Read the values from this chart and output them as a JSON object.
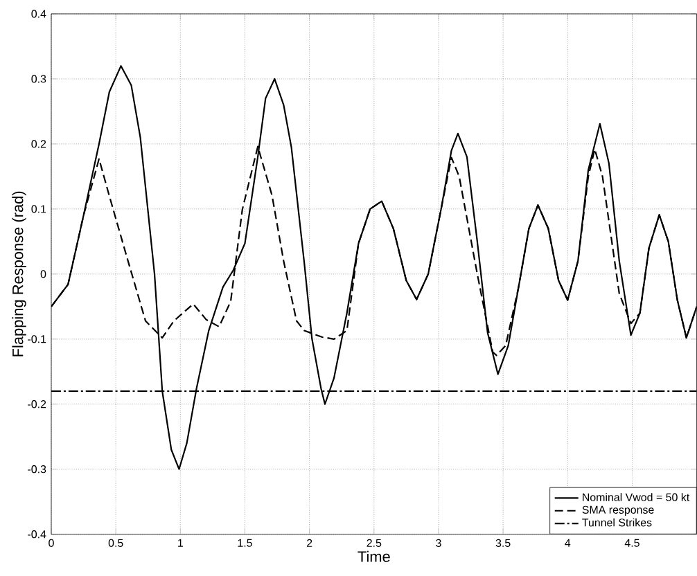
{
  "chart_data": {
    "type": "line",
    "xlabel": "Time",
    "ylabel": "Flapping Response (rad)",
    "xlim": [
      0,
      5
    ],
    "ylim": [
      -0.4,
      0.4
    ],
    "xticks": [
      0,
      0.5,
      1,
      1.5,
      2,
      2.5,
      3,
      3.5,
      4,
      4.5
    ],
    "yticks": [
      -0.4,
      -0.3,
      -0.2,
      -0.1,
      0,
      0.1,
      0.2,
      0.3,
      0.4
    ],
    "grid": true,
    "legend": "bottom right",
    "marker": "none",
    "series": [
      {
        "name": "Nominal Vwod = 50 kt",
        "color": "#000000",
        "line_style": "solid",
        "x": [
          0,
          0.13,
          0.25,
          0.37,
          0.45,
          0.54,
          0.62,
          0.69,
          0.8,
          0.86,
          0.93,
          0.99,
          1.05,
          1.125,
          1.22,
          1.33,
          1.41,
          1.5,
          1.6,
          1.66,
          1.73,
          1.8,
          1.86,
          1.96,
          2.02,
          2.09,
          2.12,
          2.19,
          2.29,
          2.38,
          2.47,
          2.56,
          2.65,
          2.75,
          2.83,
          2.92,
          3.02,
          3.1,
          3.15,
          3.22,
          3.3,
          3.38,
          3.46,
          3.54,
          3.62,
          3.7,
          3.77,
          3.85,
          3.93,
          4.0,
          4.08,
          4.16,
          4.25,
          4.32,
          4.4,
          4.49,
          4.56,
          4.63,
          4.71,
          4.78,
          4.85,
          4.92,
          5.0
        ],
        "values": [
          -0.05,
          -0.016,
          0.09,
          0.2,
          0.28,
          0.32,
          0.29,
          0.21,
          0,
          -0.18,
          -0.27,
          -0.3,
          -0.26,
          -0.176,
          -0.087,
          -0.02,
          0.006,
          0.047,
          0.18,
          0.27,
          0.3,
          0.26,
          0.195,
          0.017,
          -0.1,
          -0.176,
          -0.2,
          -0.16,
          -0.06,
          0.047,
          0.1,
          0.112,
          0.07,
          -0.01,
          -0.039,
          0.0,
          0.1,
          0.19,
          0.216,
          0.18,
          0.05,
          -0.09,
          -0.154,
          -0.11,
          -0.02,
          0.07,
          0.106,
          0.07,
          -0.01,
          -0.04,
          0.02,
          0.16,
          0.231,
          0.17,
          0.02,
          -0.094,
          -0.06,
          0.04,
          0.091,
          0.05,
          -0.04,
          -0.098,
          -0.05
        ]
      },
      {
        "name": "SMA response",
        "color": "#000000",
        "line_style": "dashed",
        "x": [
          0,
          0.13,
          0.25,
          0.37,
          0.45,
          0.58,
          0.73,
          0.86,
          0.95,
          1.1,
          1.2,
          1.3,
          1.39,
          1.48,
          1.6,
          1.71,
          1.8,
          1.9,
          1.96,
          2.1,
          2.19,
          2.29,
          2.38,
          2.47,
          2.56,
          2.65,
          2.75,
          2.83,
          2.92,
          3.02,
          3.1,
          3.16,
          3.3,
          3.42,
          3.45,
          3.52,
          3.62,
          3.7,
          3.77,
          3.85,
          3.93,
          4.0,
          4.08,
          4.16,
          4.21,
          4.27,
          4.4,
          4.49,
          4.56,
          4.63,
          4.71,
          4.78,
          4.85,
          4.92,
          5.0
        ],
        "values": [
          -0.05,
          -0.016,
          0.09,
          0.177,
          0.12,
          0.03,
          -0.072,
          -0.098,
          -0.072,
          -0.046,
          -0.07,
          -0.081,
          -0.042,
          0.099,
          0.196,
          0.121,
          0.02,
          -0.072,
          -0.087,
          -0.097,
          -0.1,
          -0.087,
          0.047,
          0.1,
          0.112,
          0.07,
          -0.01,
          -0.039,
          0.0,
          0.1,
          0.179,
          0.15,
          0.0,
          -0.12,
          -0.125,
          -0.11,
          -0.02,
          0.07,
          0.106,
          0.07,
          -0.01,
          -0.04,
          0.02,
          0.15,
          0.192,
          0.15,
          -0.03,
          -0.076,
          -0.06,
          0.04,
          0.091,
          0.05,
          -0.04,
          -0.098,
          -0.05
        ]
      },
      {
        "name": "Tunnel Strikes",
        "color": "#000000",
        "line_style": "dashdot",
        "x": [
          0,
          5
        ],
        "values": [
          -0.18,
          -0.18
        ]
      }
    ]
  }
}
